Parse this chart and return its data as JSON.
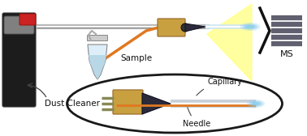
{
  "bg_color": "#ffffff",
  "labels": {
    "dust_cleaner": "Dust Cleaner",
    "sample": "Sample",
    "capillary": "Capillary",
    "needle": "Needle",
    "ms": "MS"
  },
  "colors": {
    "can_body": "#1c1c1c",
    "can_top": "#808080",
    "can_cap": "#cc2222",
    "tube_gray": "#b8b8b8",
    "tube_gray_dark": "#909090",
    "connector_gold": "#c8a040",
    "connector_dark": "#2a2a3a",
    "orange_tube": "#e07820",
    "spray_blue": "#88ccee",
    "ms_gray": "#606070",
    "ellipse_stroke": "#111111",
    "vial_body": "#ddeef8",
    "vial_liquid": "#b8d8e8",
    "yellow_beam": "#ffff88",
    "text_color": "#111111",
    "arrow_color": "#444444"
  },
  "figsize": [
    3.78,
    1.68
  ],
  "dpi": 100
}
